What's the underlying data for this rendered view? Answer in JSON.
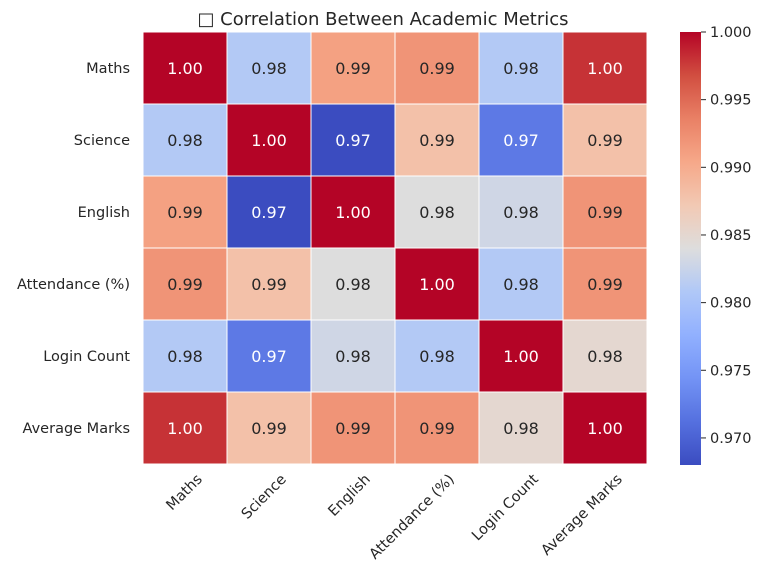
{
  "chart_data": {
    "type": "heatmap",
    "title": "□ Correlation Between Academic Metrics",
    "row_labels": [
      "Maths",
      "Science",
      "English",
      "Attendance (%)",
      "Login Count",
      "Average Marks"
    ],
    "col_labels": [
      "Maths",
      "Science",
      "English",
      "Attendance (%)",
      "Login Count",
      "Average Marks"
    ],
    "values": [
      [
        1.0,
        0.981,
        0.991,
        0.992,
        0.981,
        0.998
      ],
      [
        0.981,
        1.0,
        0.968,
        0.988,
        0.972,
        0.988
      ],
      [
        0.991,
        0.968,
        1.0,
        0.984,
        0.983,
        0.992
      ],
      [
        0.992,
        0.988,
        0.984,
        1.0,
        0.981,
        0.992
      ],
      [
        0.981,
        0.972,
        0.983,
        0.981,
        1.0,
        0.985
      ],
      [
        0.998,
        0.988,
        0.992,
        0.992,
        0.985,
        1.0
      ]
    ],
    "annotations": [
      [
        "1.00",
        "0.98",
        "0.99",
        "0.99",
        "0.98",
        "1.00"
      ],
      [
        "0.98",
        "1.00",
        "0.97",
        "0.99",
        "0.97",
        "0.99"
      ],
      [
        "0.99",
        "0.97",
        "1.00",
        "0.98",
        "0.98",
        "0.99"
      ],
      [
        "0.99",
        "0.99",
        "0.98",
        "1.00",
        "0.98",
        "0.99"
      ],
      [
        "0.98",
        "0.97",
        "0.98",
        "0.98",
        "1.00",
        "0.98"
      ],
      [
        "1.00",
        "0.99",
        "0.99",
        "0.99",
        "0.98",
        "1.00"
      ]
    ],
    "colormap": "coolwarm",
    "vmin": 0.968,
    "vmax": 1.0,
    "colorbar_ticks": [
      "0.970",
      "0.975",
      "0.980",
      "0.985",
      "0.990",
      "0.995",
      "1.000"
    ],
    "colorbar_tick_values": [
      0.97,
      0.975,
      0.98,
      0.985,
      0.99,
      0.995,
      1.0
    ],
    "colors": {
      "low": "#3b4cc0",
      "mid": "#dddddd",
      "high": "#b40426"
    }
  }
}
